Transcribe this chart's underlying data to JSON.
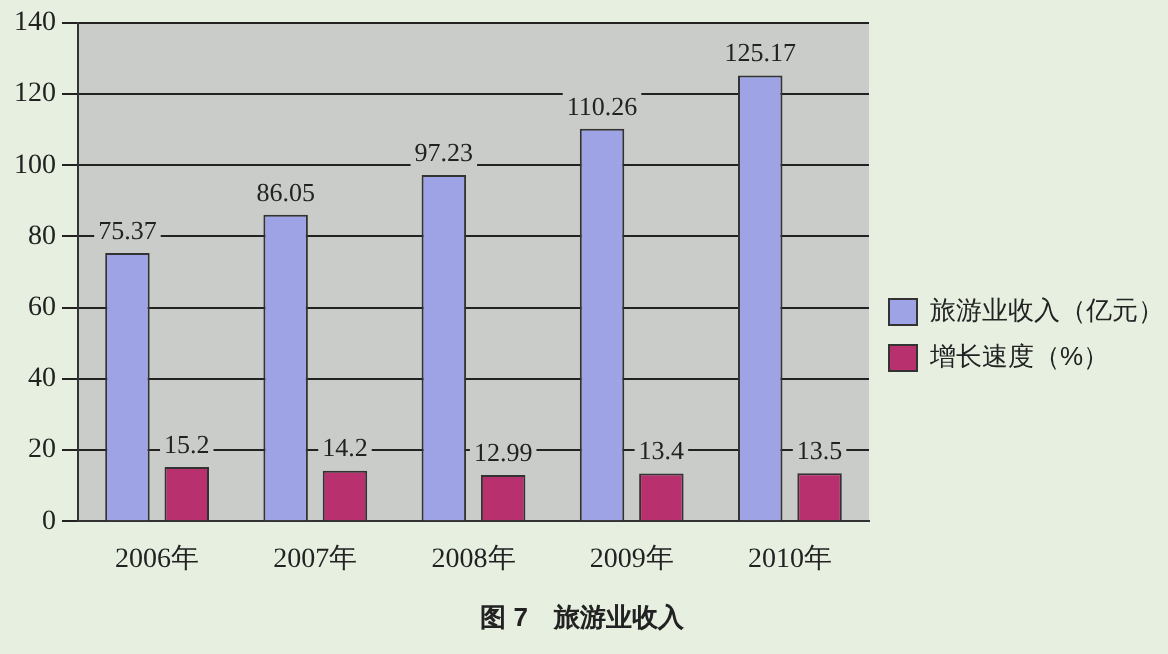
{
  "chart_data": {
    "type": "bar",
    "title": "图 7　旅游业收入",
    "categories": [
      "2006年",
      "2007年",
      "2008年",
      "2009年",
      "2010年"
    ],
    "series": [
      {
        "name": "旅游业收入（亿元）",
        "color": "#9ea3e6",
        "values": [
          75.37,
          86.05,
          97.23,
          110.26,
          125.17
        ]
      },
      {
        "name": "增长速度（%）",
        "color": "#b8306e",
        "values": [
          15.2,
          14.2,
          12.99,
          13.4,
          13.5
        ]
      }
    ],
    "ylim": [
      0,
      140
    ],
    "yticks": [
      0,
      20,
      40,
      60,
      80,
      100,
      120,
      140
    ],
    "grid": "y",
    "legend": "right",
    "data_labels": true
  }
}
